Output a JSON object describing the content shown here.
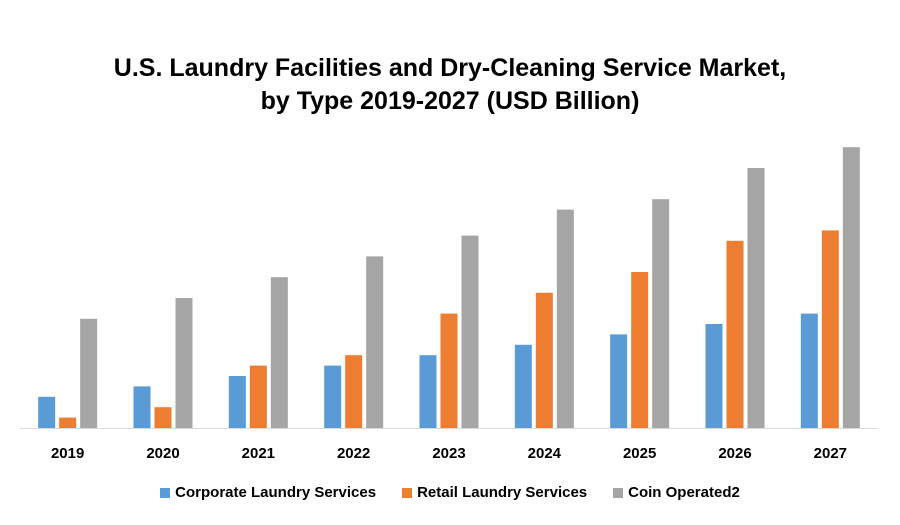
{
  "chart_data": {
    "type": "bar",
    "title_line1": "U.S. Laundry Facilities and Dry-Cleaning Service Market,",
    "title_line2": "by Type 2019-2027 (USD Billion)",
    "xlabel": "",
    "ylabel": "",
    "categories": [
      "2019",
      "2020",
      "2021",
      "2022",
      "2023",
      "2024",
      "2025",
      "2026",
      "2027"
    ],
    "series": [
      {
        "name": "Corporate Laundry Services",
        "color": "#5B9BD5",
        "values": [
          3.0,
          4.0,
          5.0,
          6.0,
          7.0,
          8.0,
          9.0,
          10.0,
          11.0
        ]
      },
      {
        "name": "Retail Laundry Services",
        "color": "#ED7D31",
        "values": [
          1.0,
          2.0,
          6.0,
          7.0,
          11.0,
          13.0,
          15.0,
          18.0,
          19.0
        ]
      },
      {
        "name": "Coin Operated2",
        "color": "#A5A5A5",
        "values": [
          10.5,
          12.5,
          14.5,
          16.5,
          18.5,
          21.0,
          22.0,
          25.0,
          27.0
        ]
      }
    ],
    "ylim": [
      0,
      27.5
    ],
    "grid": false,
    "legend_position": "bottom"
  }
}
